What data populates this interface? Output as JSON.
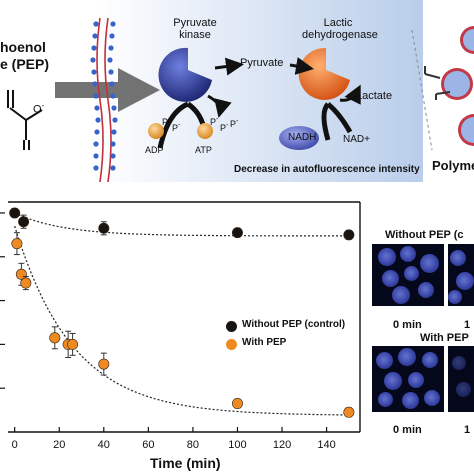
{
  "colors": {
    "control": "#1a1410",
    "pep": "#ee8a22",
    "panel_bg_left": "#ffffff",
    "panel_bg_right": "#b9cdea",
    "kinase": "#25338e",
    "dehydrogenase": "#e86a1e",
    "nadh": "#5a66c4",
    "atp": "#e2912a",
    "microscopy": "#05071a"
  },
  "schematic": {
    "substrate_line1": "hoenol",
    "substrate_line2": "e (PEP)",
    "kinase_line1": "Pyruvate",
    "kinase_line2": "kinase",
    "pyruvate": "Pyruvate",
    "dehydrogenase_line1": "Lactic",
    "dehydrogenase_line2": "dehydrogenase",
    "lactate": "Lactate",
    "nadh": "NADH",
    "nad": "NAD+",
    "adp": "ADP",
    "atp": "ATP",
    "phosphate": "P",
    "charge": "-",
    "carboxylate": "O",
    "decrease_caption": "Decrease in autofluorescence intensity",
    "polymer_label": "Polyme"
  },
  "chart_data": {
    "type": "scatter",
    "xlabel": "Time (min)",
    "ylabel": "",
    "xlim": [
      -3,
      155
    ],
    "ylim": [
      0.0,
      1.05
    ],
    "xticks": [
      0,
      20,
      40,
      60,
      80,
      100,
      120,
      140
    ],
    "grid": false,
    "legend_position": "center-right",
    "series": [
      {
        "name": "Without PEP (control)",
        "color": "#1a1410",
        "x": [
          0,
          4,
          40,
          100,
          150
        ],
        "y": [
          1.0,
          0.96,
          0.93,
          0.91,
          0.9
        ],
        "yerr": [
          0.02,
          0.03,
          0.03,
          0.02,
          0.02
        ],
        "fit": "exponential decay (dotted line)"
      },
      {
        "name": "With PEP",
        "color": "#ee8a22",
        "x": [
          1,
          3,
          5,
          18,
          24,
          26,
          40,
          100,
          150
        ],
        "y": [
          0.86,
          0.72,
          0.68,
          0.43,
          0.4,
          0.4,
          0.31,
          0.13,
          0.09
        ],
        "yerr": [
          0.05,
          0.05,
          0.03,
          0.05,
          0.06,
          0.05,
          0.05,
          0.02,
          0.02
        ],
        "fit": "exponential decay (dotted line)"
      }
    ]
  },
  "micrographs": {
    "without_title": "Without PEP (c",
    "with_title": "With PEP",
    "label_0": "0 min",
    "label_1": "1"
  }
}
